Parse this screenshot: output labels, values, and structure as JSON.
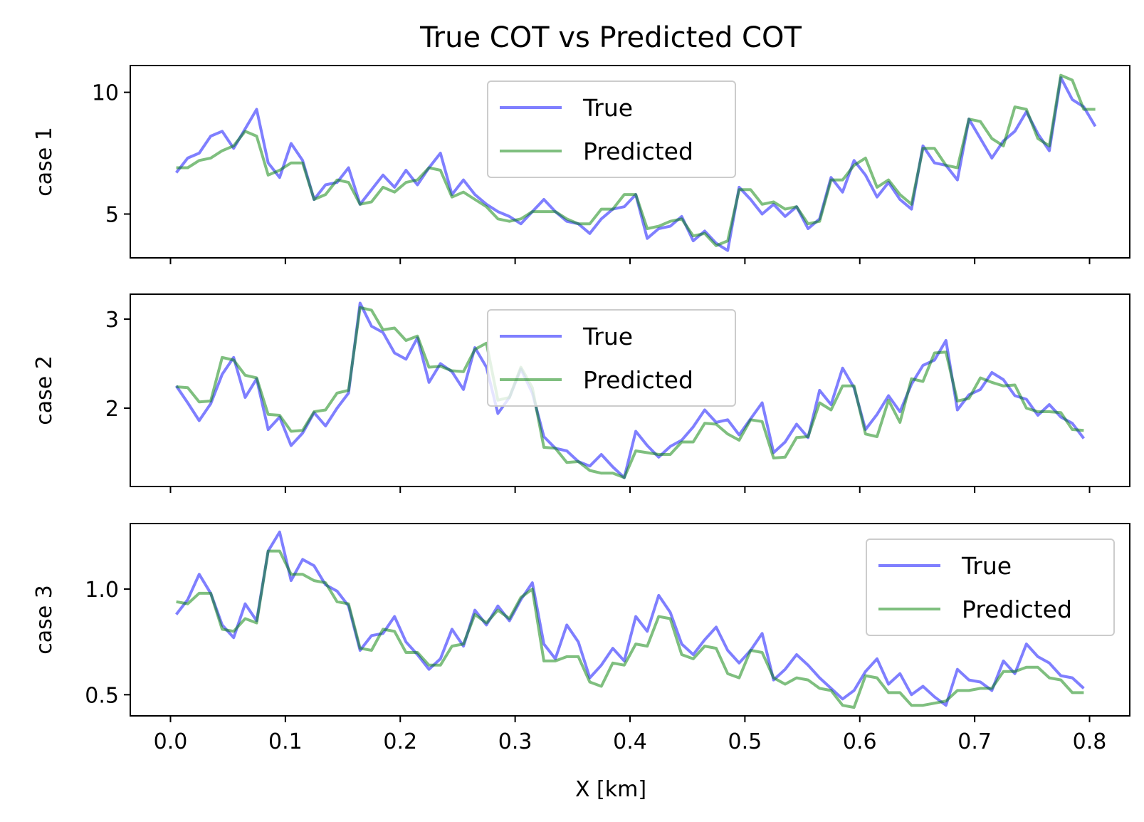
{
  "chart_data": {
    "type": "line",
    "title": "True COT vs Predicted COT",
    "xlabel": "X [km]",
    "xlim": [
      -0.035,
      0.835
    ],
    "xticks": [
      0.0,
      0.1,
      0.2,
      0.3,
      0.4,
      0.5,
      0.6,
      0.7,
      0.8
    ],
    "xtick_labels": [
      "0.0",
      "0.1",
      "0.2",
      "0.3",
      "0.4",
      "0.5",
      "0.6",
      "0.7",
      "0.8"
    ],
    "x_start": 0.005,
    "x_step": 0.01,
    "colors": {
      "True": "#0000ff",
      "Predicted": "#008000"
    },
    "subplots": [
      {
        "ylabel": "case 1",
        "ylim": [
          3.2,
          11.1
        ],
        "yticks": [
          5,
          10
        ],
        "ytick_labels": [
          "5",
          "10"
        ],
        "legend_loc": "upper center",
        "series": [
          {
            "name": "True",
            "values": [
              6.7,
              7.3,
              7.5,
              8.2,
              8.4,
              7.7,
              8.5,
              9.3,
              7.1,
              6.5,
              7.9,
              7.2,
              5.6,
              6.2,
              6.3,
              6.9,
              5.4,
              6.0,
              6.6,
              6.1,
              6.8,
              6.2,
              6.9,
              7.5,
              5.8,
              6.4,
              5.8,
              5.4,
              5.1,
              4.9,
              4.6,
              5.1,
              5.6,
              5.1,
              4.7,
              4.6,
              4.2,
              4.8,
              5.2,
              5.3,
              5.8,
              4.0,
              4.4,
              4.5,
              4.9,
              3.9,
              4.3,
              3.8,
              3.5,
              6.1,
              5.6,
              5.0,
              5.4,
              4.9,
              5.3,
              4.4,
              4.8,
              6.5,
              5.9,
              7.2,
              6.6,
              5.7,
              6.3,
              5.6,
              5.2,
              7.8,
              7.1,
              7.0,
              6.4,
              8.9,
              8.1,
              7.3,
              8.0,
              8.4,
              9.2,
              8.3,
              7.6,
              10.6,
              9.7,
              9.4,
              8.6
            ]
          },
          {
            "name": "Predicted",
            "values": [
              6.9,
              6.9,
              7.2,
              7.3,
              7.6,
              7.8,
              8.4,
              8.2,
              6.6,
              6.8,
              7.1,
              7.1,
              5.6,
              5.8,
              6.4,
              6.3,
              5.4,
              5.5,
              6.1,
              5.9,
              6.3,
              6.4,
              6.9,
              6.8,
              5.7,
              5.9,
              5.6,
              5.3,
              4.8,
              4.7,
              4.8,
              5.1,
              5.1,
              5.1,
              4.8,
              4.6,
              4.6,
              5.2,
              5.2,
              5.8,
              5.8,
              4.4,
              4.5,
              4.7,
              4.8,
              4.1,
              4.2,
              3.7,
              3.9,
              6.0,
              6.0,
              5.4,
              5.5,
              5.2,
              5.3,
              4.6,
              4.7,
              6.4,
              6.4,
              7.0,
              7.3,
              6.1,
              6.4,
              5.8,
              5.4,
              7.7,
              7.7,
              7.0,
              6.9,
              8.9,
              8.8,
              8.1,
              7.8,
              9.4,
              9.3,
              8.1,
              7.8,
              10.7,
              10.5,
              9.3,
              9.3
            ]
          }
        ]
      },
      {
        "ylabel": "case 2",
        "ylim": [
          1.12,
          3.28
        ],
        "yticks": [
          2,
          3
        ],
        "ytick_labels": [
          "2",
          "3"
        ],
        "legend_loc": "upper center",
        "series": [
          {
            "name": "True",
            "values": [
              2.25,
              2.06,
              1.86,
              2.05,
              2.38,
              2.57,
              2.12,
              2.33,
              1.76,
              1.9,
              1.58,
              1.72,
              1.95,
              1.8,
              2.0,
              2.17,
              3.18,
              2.92,
              2.85,
              2.62,
              2.55,
              2.79,
              2.29,
              2.5,
              2.41,
              2.21,
              2.68,
              2.46,
              1.94,
              2.12,
              2.44,
              2.17,
              1.68,
              1.55,
              1.52,
              1.4,
              1.35,
              1.48,
              1.34,
              1.22,
              1.74,
              1.58,
              1.45,
              1.57,
              1.64,
              1.79,
              1.98,
              1.84,
              1.87,
              1.7,
              1.88,
              2.06,
              1.5,
              1.62,
              1.82,
              1.67,
              2.2,
              2.04,
              2.45,
              2.23,
              1.76,
              1.93,
              2.14,
              1.96,
              2.27,
              2.48,
              2.54,
              2.76,
              1.98,
              2.15,
              2.21,
              2.4,
              2.32,
              2.14,
              2.1,
              1.92,
              2.04,
              1.9,
              1.83,
              1.66
            ]
          },
          {
            "name": "Predicted",
            "values": [
              2.24,
              2.23,
              2.07,
              2.08,
              2.57,
              2.54,
              2.37,
              2.34,
              1.93,
              1.92,
              1.74,
              1.75,
              1.96,
              1.98,
              2.17,
              2.2,
              3.13,
              3.1,
              2.88,
              2.9,
              2.76,
              2.81,
              2.46,
              2.47,
              2.42,
              2.41,
              2.66,
              2.73,
              2.09,
              2.12,
              2.46,
              2.23,
              1.56,
              1.55,
              1.39,
              1.4,
              1.3,
              1.27,
              1.27,
              1.22,
              1.52,
              1.5,
              1.48,
              1.48,
              1.62,
              1.62,
              1.83,
              1.82,
              1.71,
              1.64,
              1.87,
              1.85,
              1.44,
              1.45,
              1.67,
              1.68,
              2.06,
              1.98,
              2.25,
              2.25,
              1.71,
              1.68,
              2.09,
              1.84,
              2.33,
              2.3,
              2.62,
              2.63,
              2.08,
              2.11,
              2.34,
              2.29,
              2.25,
              2.26,
              2.0,
              1.96,
              1.96,
              1.95,
              1.76,
              1.75
            ]
          }
        ]
      },
      {
        "ylabel": "case 3",
        "ylim": [
          0.4,
          1.31
        ],
        "yticks": [
          0.5,
          1.0
        ],
        "ytick_labels": [
          "0.5",
          "1.0"
        ],
        "legend_loc": "upper right",
        "series": [
          {
            "name": "True",
            "values": [
              0.88,
              0.95,
              1.07,
              0.98,
              0.83,
              0.77,
              0.93,
              0.85,
              1.18,
              1.27,
              1.04,
              1.14,
              1.11,
              1.02,
              0.99,
              0.92,
              0.71,
              0.78,
              0.79,
              0.87,
              0.75,
              0.69,
              0.62,
              0.67,
              0.81,
              0.73,
              0.9,
              0.83,
              0.92,
              0.85,
              0.95,
              1.03,
              0.74,
              0.67,
              0.83,
              0.75,
              0.58,
              0.64,
              0.72,
              0.66,
              0.87,
              0.8,
              0.97,
              0.89,
              0.74,
              0.69,
              0.76,
              0.82,
              0.71,
              0.65,
              0.71,
              0.79,
              0.57,
              0.62,
              0.69,
              0.64,
              0.58,
              0.53,
              0.48,
              0.52,
              0.61,
              0.67,
              0.55,
              0.6,
              0.5,
              0.54,
              0.49,
              0.45,
              0.62,
              0.57,
              0.56,
              0.52,
              0.66,
              0.6,
              0.74,
              0.68,
              0.65,
              0.59,
              0.58,
              0.53
            ]
          },
          {
            "name": "Predicted",
            "values": [
              0.94,
              0.93,
              0.98,
              0.98,
              0.81,
              0.8,
              0.86,
              0.84,
              1.18,
              1.18,
              1.07,
              1.07,
              1.04,
              1.03,
              0.94,
              0.93,
              0.72,
              0.71,
              0.81,
              0.8,
              0.7,
              0.7,
              0.64,
              0.64,
              0.73,
              0.74,
              0.88,
              0.84,
              0.9,
              0.86,
              0.96,
              1.0,
              0.66,
              0.66,
              0.68,
              0.68,
              0.56,
              0.54,
              0.65,
              0.64,
              0.74,
              0.73,
              0.87,
              0.86,
              0.69,
              0.67,
              0.73,
              0.72,
              0.6,
              0.58,
              0.71,
              0.7,
              0.58,
              0.55,
              0.58,
              0.57,
              0.53,
              0.52,
              0.45,
              0.44,
              0.59,
              0.58,
              0.51,
              0.51,
              0.45,
              0.45,
              0.46,
              0.47,
              0.52,
              0.52,
              0.53,
              0.53,
              0.61,
              0.61,
              0.63,
              0.63,
              0.58,
              0.57,
              0.51,
              0.51
            ]
          }
        ]
      }
    ]
  }
}
